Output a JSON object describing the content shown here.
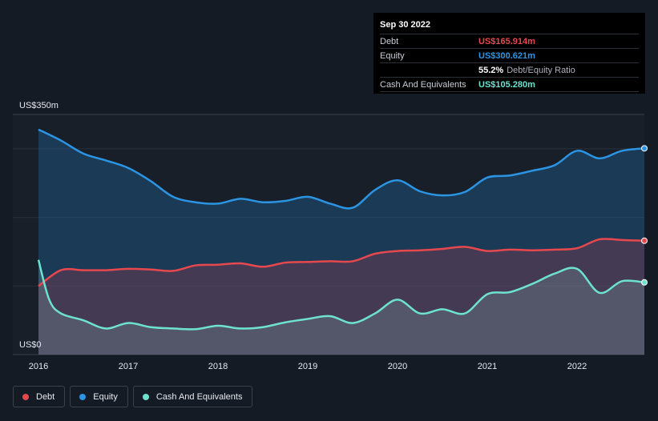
{
  "tooltip": {
    "date": "Sep 30 2022",
    "rows": [
      {
        "label": "Debt",
        "value": "US$165.914m"
      },
      {
        "label": "Equity",
        "value": "US$300.621m"
      },
      {
        "label": "",
        "ratio_value": "55.2%",
        "ratio_label": "Debt/Equity Ratio"
      },
      {
        "label": "Cash And Equivalents",
        "value": "US$105.280m"
      }
    ]
  },
  "legend": [
    {
      "label": "Debt",
      "color": "#e6484e"
    },
    {
      "label": "Equity",
      "color": "#2b94e3"
    },
    {
      "label": "Cash And Equivalents",
      "color": "#6de3cf"
    }
  ],
  "chart_data": {
    "type": "area",
    "title": "",
    "y_top_label": "US$350m",
    "y_bottom_label": "US$0",
    "ylim": [
      0,
      350
    ],
    "xlim": [
      2016.0,
      2022.75
    ],
    "x_ticks": [
      "2016",
      "2017",
      "2018",
      "2019",
      "2020",
      "2021",
      "2022"
    ],
    "colors": {
      "debt": "#e6484e",
      "equity": "#2b94e3",
      "cash": "#6de3cf"
    },
    "series": [
      {
        "name": "Equity",
        "x": [
          2016.0,
          2016.25,
          2016.5,
          2016.75,
          2017.0,
          2017.25,
          2017.5,
          2017.75,
          2018.0,
          2018.25,
          2018.5,
          2018.75,
          2019.0,
          2019.25,
          2019.5,
          2019.75,
          2020.0,
          2020.25,
          2020.5,
          2020.75,
          2021.0,
          2021.25,
          2021.5,
          2021.75,
          2022.0,
          2022.25,
          2022.5,
          2022.75
        ],
        "values": [
          328,
          312,
          293,
          283,
          272,
          253,
          230,
          222,
          220,
          227,
          222,
          224,
          230,
          220,
          214,
          240,
          254,
          238,
          232,
          237,
          258,
          261,
          268,
          276,
          297,
          286,
          297,
          300.621
        ]
      },
      {
        "name": "Debt",
        "x": [
          2016.0,
          2016.25,
          2016.5,
          2016.75,
          2017.0,
          2017.25,
          2017.5,
          2017.75,
          2018.0,
          2018.25,
          2018.5,
          2018.75,
          2019.0,
          2019.25,
          2019.5,
          2019.75,
          2020.0,
          2020.25,
          2020.5,
          2020.75,
          2021.0,
          2021.25,
          2021.5,
          2021.75,
          2022.0,
          2022.25,
          2022.5,
          2022.75
        ],
        "values": [
          100,
          123,
          123,
          123,
          125,
          124,
          122,
          130,
          131,
          133,
          128,
          134,
          135,
          136,
          136,
          147,
          151,
          152,
          154,
          157,
          151,
          153,
          152,
          153,
          155,
          168,
          167,
          165.914
        ]
      },
      {
        "name": "Cash And Equivalents",
        "x": [
          2016.0,
          2016.12,
          2016.25,
          2016.5,
          2016.75,
          2017.0,
          2017.25,
          2017.5,
          2017.75,
          2018.0,
          2018.25,
          2018.5,
          2018.75,
          2019.0,
          2019.25,
          2019.5,
          2019.75,
          2020.0,
          2020.25,
          2020.5,
          2020.75,
          2021.0,
          2021.25,
          2021.5,
          2021.75,
          2022.0,
          2022.25,
          2022.5,
          2022.75
        ],
        "values": [
          138,
          80,
          60,
          50,
          38,
          46,
          40,
          38,
          37,
          42,
          38,
          40,
          47,
          52,
          56,
          46,
          60,
          80,
          60,
          66,
          60,
          88,
          91,
          103,
          118,
          125,
          90,
          107,
          105.28
        ]
      }
    ]
  }
}
